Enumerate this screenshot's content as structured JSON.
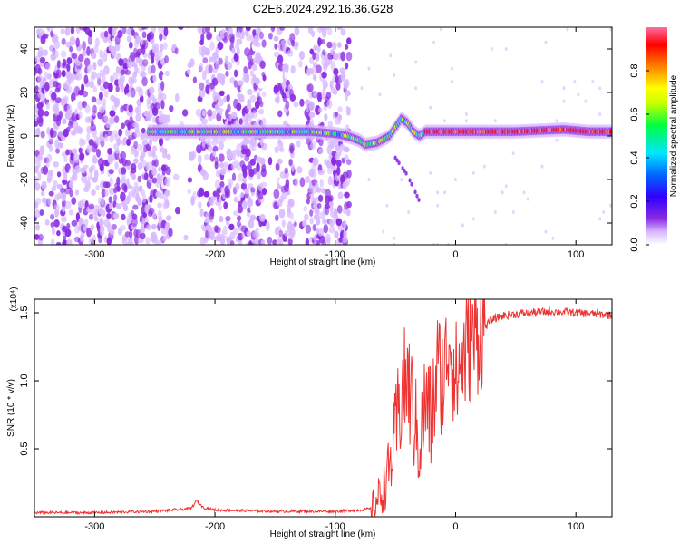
{
  "title": "C2E6.2024.292.16.36.G28",
  "chart_data": [
    {
      "type": "heatmap",
      "xlabel": "Height of straight line (km)",
      "ylabel": "Frequency (Hz)",
      "xlim": [
        -350,
        130
      ],
      "ylim": [
        -50,
        50
      ],
      "xticks": [
        -300,
        -200,
        -100,
        0,
        100
      ],
      "yticks": [
        -40,
        -20,
        0,
        20,
        40
      ],
      "colorbar": {
        "label": "Normalized spectral amplitude",
        "range": [
          0,
          1
        ],
        "ticks": [
          "0.0",
          "0.2",
          "0.4",
          "0.6",
          "0.8"
        ],
        "colors": [
          "#ffffff",
          "#d8b8ff",
          "#8a2be2",
          "#3000ff",
          "#0064ff",
          "#00e5ff",
          "#00ff40",
          "#c8ff00",
          "#ffff00",
          "#ff8000",
          "#ff0000",
          "#ff6fa0"
        ]
      },
      "ridge": {
        "note": "",
        "x": [
          -250,
          -240,
          -200,
          -150,
          -120,
          -100,
          -90,
          -80,
          -75,
          -65,
          -55,
          -50,
          -45,
          -40,
          -35,
          -30,
          -25,
          -20,
          -10,
          0,
          20,
          50,
          90,
          110,
          130
        ],
        "y": [
          2,
          2,
          2,
          2,
          2,
          1,
          0,
          -2,
          -4,
          -3,
          0,
          4,
          8,
          6,
          2,
          0,
          2,
          2,
          2,
          2,
          2,
          2,
          3,
          2,
          2
        ]
      },
      "branch": {
        "x": [
          -50,
          -45,
          -40,
          -35,
          -30
        ],
        "y": [
          -10,
          -14,
          -18,
          -24,
          -30
        ]
      }
    },
    {
      "type": "line",
      "xlabel": "Height of straight line (km)",
      "ylabel": "SNR (10 * v/v)",
      "multiplier_label": "(x10⁴)",
      "xlim": [
        -350,
        130
      ],
      "ylim": [
        0,
        1.6
      ],
      "xticks": [
        -300,
        -200,
        -100,
        0,
        100
      ],
      "yticks": [
        "0.5",
        "1.0",
        "1.5"
      ],
      "series": [
        {
          "color": "#ee3333",
          "x": [
            -350,
            -300,
            -250,
            -220,
            -215,
            -210,
            -200,
            -150,
            -100,
            -80,
            -70,
            -60,
            -55,
            -50,
            -45,
            -40,
            -35,
            -30,
            -25,
            -20,
            -15,
            -10,
            -5,
            0,
            10,
            20,
            30,
            40,
            60,
            80,
            100,
            120,
            130
          ],
          "y": [
            0.03,
            0.03,
            0.04,
            0.06,
            0.12,
            0.07,
            0.05,
            0.04,
            0.04,
            0.05,
            0.06,
            0.2,
            0.35,
            0.6,
            0.9,
            1.0,
            0.75,
            0.5,
            0.85,
            0.7,
            1.1,
            1.0,
            1.35,
            1.0,
            1.25,
            1.35,
            1.45,
            1.48,
            1.5,
            1.51,
            1.5,
            1.49,
            1.48
          ]
        }
      ]
    }
  ]
}
